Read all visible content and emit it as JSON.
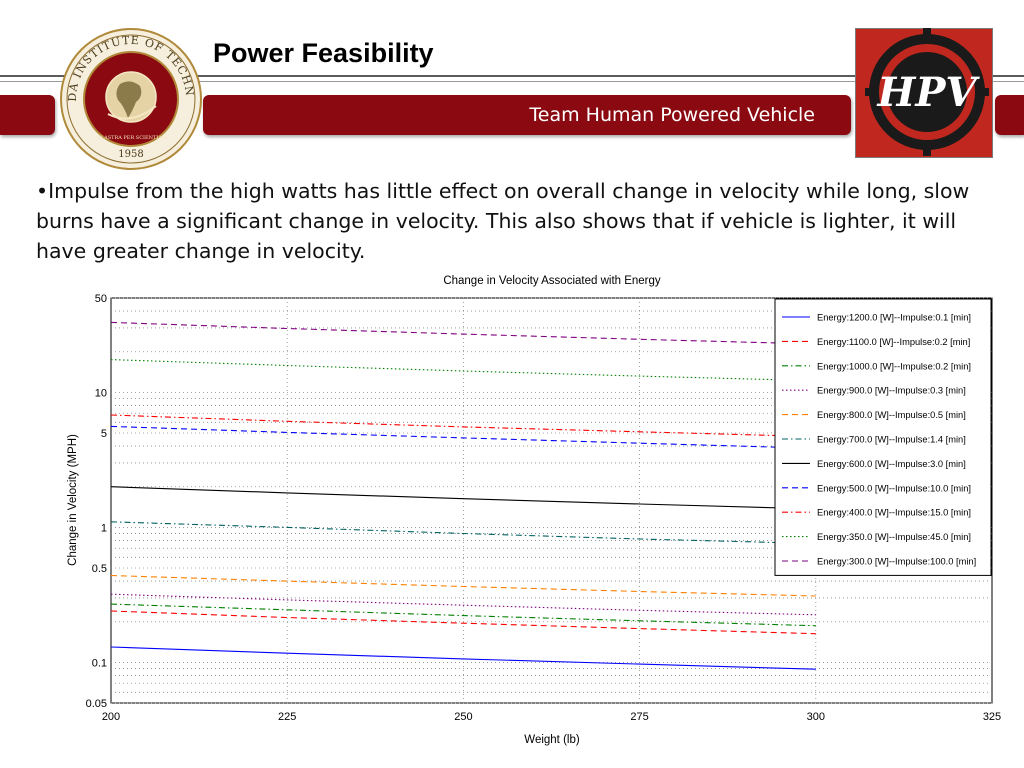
{
  "header": {
    "title": "Power Feasibility",
    "subtitle": "Team Human Powered Vehicle"
  },
  "logos": {
    "seal_text_top": "FLORIDA INSTITUTE OF TECHNOLOGY",
    "seal_text_bottom": "AD ASTRA PER SCIENTIAM",
    "seal_year": "1958",
    "hpv_text": "HPV"
  },
  "colors": {
    "accent": "#8b0a12",
    "hpv_bg": "#c0281f"
  },
  "body": {
    "text": "•Impulse from the high watts has little effect on overall change in velocity while long, slow burns have a significant change in velocity. This also shows that if vehicle is lighter, it will have greater change in velocity."
  },
  "chart_data": {
    "type": "line",
    "title": "Change in Velocity Associated with Energy",
    "xlabel": "Weight (lb)",
    "ylabel": "Change in Velocity (MPH)",
    "xlim": [
      200,
      325
    ],
    "ylim": [
      0.05,
      50
    ],
    "yscale": "log",
    "grid": true,
    "legend_position": "top-right",
    "x_ticks": [
      "200",
      "225",
      "250",
      "275",
      "300",
      "325"
    ],
    "y_ticks": [
      "0.05",
      "0.1",
      "0.5",
      "1",
      "5",
      "10",
      "50"
    ],
    "x": [
      200,
      225,
      250,
      275,
      300
    ],
    "series": [
      {
        "name": "Energy:1200.0 [W]--Impulse:0.1 [min]",
        "color": "#0000ff",
        "dash": "solid",
        "values": [
          0.13,
          0.117,
          0.106,
          0.097,
          0.089
        ]
      },
      {
        "name": "Energy:1100.0 [W]--Impulse:0.2 [min]",
        "color": "#ff0000",
        "dash": "dashed",
        "values": [
          0.24,
          0.215,
          0.195,
          0.178,
          0.163
        ]
      },
      {
        "name": "Energy:1000.0 [W]--Impulse:0.2 [min]",
        "color": "#008000",
        "dash": "dashdot",
        "values": [
          0.27,
          0.245,
          0.222,
          0.203,
          0.187
        ]
      },
      {
        "name": "Energy:900.0 [W]--Impulse:0.3 [min]",
        "color": "#800080",
        "dash": "dotted",
        "values": [
          0.32,
          0.29,
          0.265,
          0.243,
          0.225
        ]
      },
      {
        "name": "Energy:800.0 [W]--Impulse:0.5 [min]",
        "color": "#ff8000",
        "dash": "dashed",
        "values": [
          0.44,
          0.4,
          0.365,
          0.335,
          0.31
        ]
      },
      {
        "name": "Energy:700.0 [W]--Impulse:1.4 [min]",
        "color": "#006060",
        "dash": "dashdot",
        "values": [
          1.1,
          1.0,
          0.9,
          0.82,
          0.76
        ]
      },
      {
        "name": "Energy:600.0 [W]--Impulse:3.0 [min]",
        "color": "#000000",
        "dash": "solid",
        "values": [
          2.0,
          1.8,
          1.63,
          1.49,
          1.37
        ]
      },
      {
        "name": "Energy:500.0 [W]--Impulse:10.0 [min]",
        "color": "#0000ff",
        "dash": "dashed",
        "values": [
          5.6,
          5.05,
          4.6,
          4.2,
          3.85
        ]
      },
      {
        "name": "Energy:400.0 [W]--Impulse:15.0 [min]",
        "color": "#ff0000",
        "dash": "dashdot",
        "values": [
          6.8,
          6.1,
          5.55,
          5.1,
          4.7
        ]
      },
      {
        "name": "Energy:350.0 [W]--Impulse:45.0 [min]",
        "color": "#008000",
        "dash": "dotted",
        "values": [
          17.5,
          15.8,
          14.4,
          13.2,
          12.2
        ]
      },
      {
        "name": "Energy:300.0 [W]--Impulse:100.0 [min]",
        "color": "#800080",
        "dash": "dashed",
        "values": [
          33.0,
          29.7,
          27.0,
          24.7,
          22.8
        ]
      }
    ]
  }
}
